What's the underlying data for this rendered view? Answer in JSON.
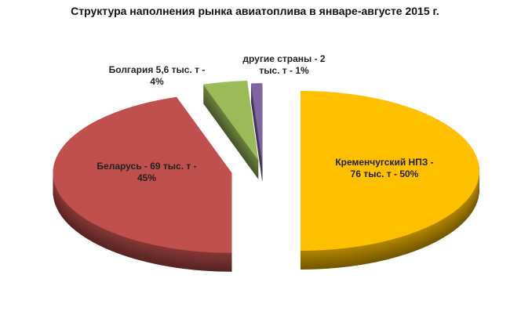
{
  "chart_data": {
    "type": "pie",
    "title": "Структура наполнения рынка авиатоплива в январе-августе 2015 г.",
    "categories": [
      "Кременчугский НПЗ - 76 тыс. т - 50%",
      "Беларусь - 69 тыс. т - 45%",
      "Болгария 5,6 тыс. т - 4%",
      "другие страны - 2 тыс. т - 1%"
    ],
    "values": [
      50,
      45,
      4,
      1
    ],
    "colors": [
      "#ffc000",
      "#c0504d",
      "#9bbb59",
      "#8064a2"
    ]
  }
}
